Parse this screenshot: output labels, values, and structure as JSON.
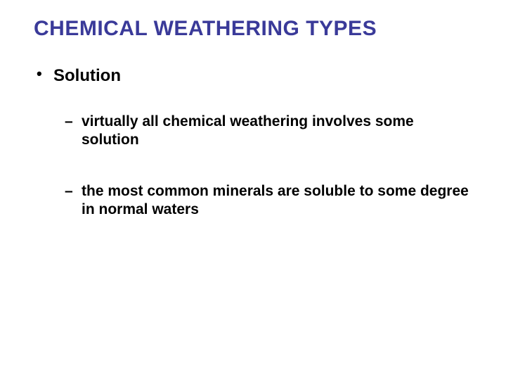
{
  "title": {
    "text": "CHEMICAL WEATHERING TYPES",
    "color": "#3a3a99",
    "fontsize": 30
  },
  "bullets": {
    "level1": [
      {
        "text": "Solution",
        "fontsize": 24,
        "color": "#000000",
        "children": [
          {
            "text": "virtually all chemical weathering involves some solution",
            "fontsize": 21,
            "color": "#000000"
          },
          {
            "text": "the most common minerals are soluble to some degree in normal waters",
            "fontsize": 21,
            "color": "#000000"
          }
        ]
      }
    ]
  },
  "background_color": "#ffffff"
}
